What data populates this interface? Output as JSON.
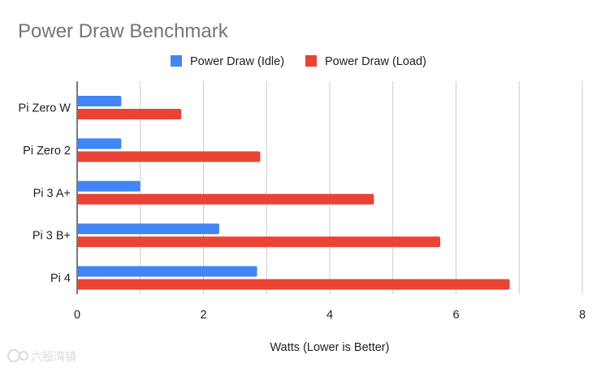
{
  "chart_data": {
    "type": "bar",
    "orientation": "horizontal",
    "title": "Power Draw Benchmark",
    "xlabel": "Watts (Lower is Better)",
    "ylabel": "",
    "categories": [
      "Pi Zero W",
      "Pi Zero 2",
      "Pi 3 A+",
      "Pi 3 B+",
      "Pi 4"
    ],
    "series": [
      {
        "name": "Power Draw (Idle)",
        "color": "#4285f4",
        "values": [
          0.7,
          0.7,
          1.0,
          2.25,
          2.85
        ]
      },
      {
        "name": "Power Draw (Load)",
        "color": "#ea4335",
        "values": [
          1.65,
          2.9,
          4.7,
          5.75,
          6.85
        ]
      }
    ],
    "xlim": [
      0,
      8
    ],
    "x_ticks": [
      "0",
      "2",
      "4",
      "6",
      "8"
    ],
    "grid": true,
    "legend_position": "top"
  },
  "watermark": {
    "text": "六股湾镇"
  },
  "colors": {
    "title": "#757575",
    "text": "#222222",
    "grid": "#cccccc",
    "axis": "#333333"
  }
}
